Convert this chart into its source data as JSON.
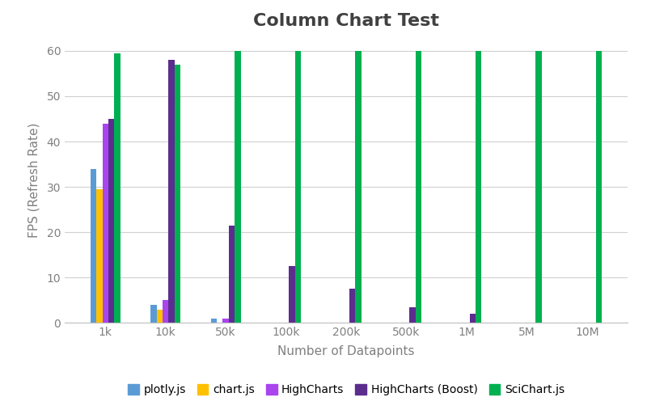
{
  "title": "Column Chart Test",
  "xlabel": "Number of Datapoints",
  "ylabel": "FPS (Refresh Rate)",
  "categories": [
    "1k",
    "10k",
    "50k",
    "100k",
    "200k",
    "500k",
    "1M",
    "5M",
    "10M"
  ],
  "series": {
    "plotly.js": [
      34,
      4,
      1,
      0,
      0,
      0,
      0,
      0,
      0
    ],
    "chart.js": [
      29.5,
      3,
      0,
      0,
      0,
      0,
      0,
      0,
      0
    ],
    "HighCharts": [
      44,
      5,
      1,
      0,
      0,
      0,
      0,
      0,
      0
    ],
    "HighCharts (Boost)": [
      45,
      58,
      21.5,
      12.5,
      7.5,
      3.5,
      2,
      0,
      0
    ],
    "SciChart.js": [
      59.5,
      57,
      60,
      60,
      60,
      60,
      60,
      60,
      60
    ]
  },
  "colors": {
    "plotly.js": "#5B9BD5",
    "chart.js": "#FFC000",
    "HighCharts": "#AA44EE",
    "HighCharts (Boost)": "#5B2D8E",
    "SciChart.js": "#00B050"
  },
  "ylim": [
    0,
    63
  ],
  "yticks": [
    0,
    10,
    20,
    30,
    40,
    50,
    60
  ],
  "background_color": "#FFFFFF",
  "grid_color": "#D0D0D0",
  "title_fontsize": 16,
  "axis_label_fontsize": 11,
  "tick_fontsize": 10,
  "legend_fontsize": 10
}
